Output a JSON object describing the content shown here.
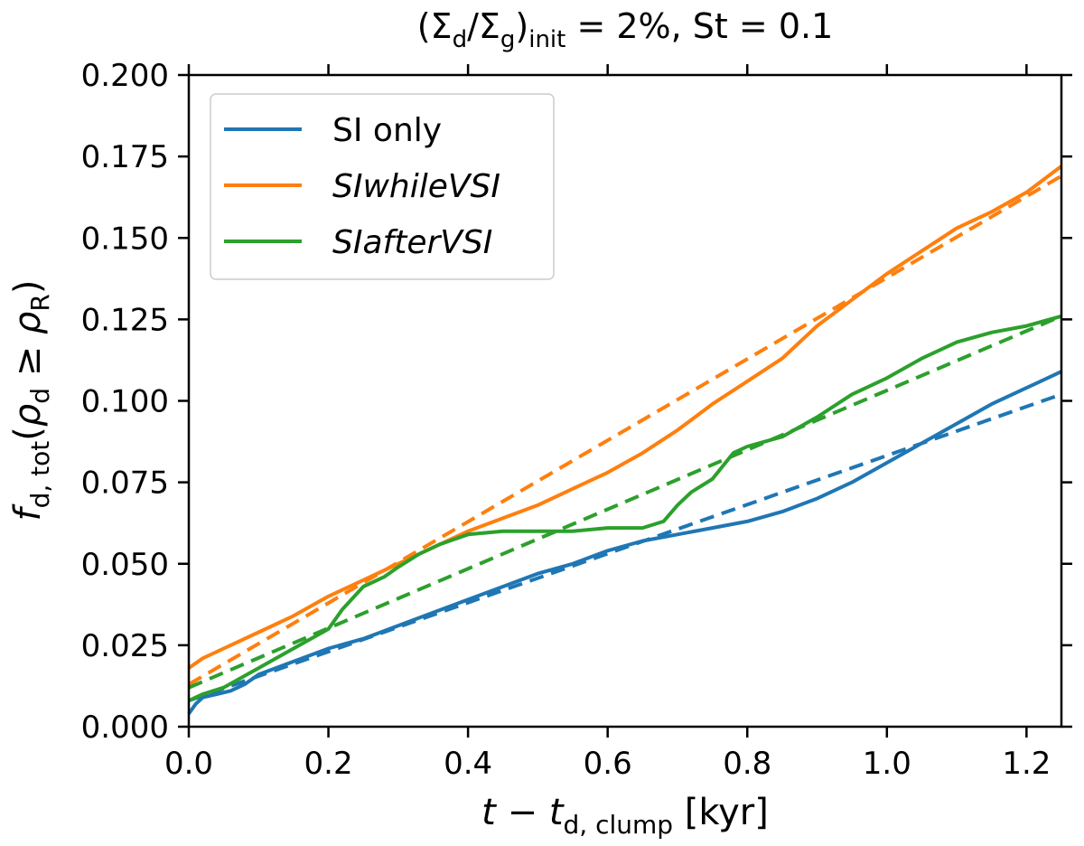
{
  "chart_data": {
    "type": "line",
    "title": {
      "open": "(Σ",
      "d1": "d",
      "slash": "/Σ",
      "g": "g",
      "close": ")",
      "init": "init",
      "rest": " = 2%, St = 0.1"
    },
    "xlabel": {
      "t": "t",
      "minus": " − ",
      "t2": "t",
      "sub": "d, clump",
      "unit": " [kyr]"
    },
    "ylabel": {
      "f": "f",
      "sub": "d, tot",
      "open": "(",
      "rho": "ρ",
      "rho_sub": "d",
      "ge": " ≥ ",
      "rho2": "ρ",
      "rho2_sub": "R",
      "close": ")"
    },
    "xlim": [
      0.0,
      1.25
    ],
    "ylim": [
      0.0,
      0.2
    ],
    "xticks": [
      0.0,
      0.2,
      0.4,
      0.6,
      0.8,
      1.0,
      1.2
    ],
    "xtick_labels": [
      "0.0",
      "0.2",
      "0.4",
      "0.6",
      "0.8",
      "1.0",
      "1.2"
    ],
    "yticks": [
      0.0,
      0.025,
      0.05,
      0.075,
      0.1,
      0.125,
      0.15,
      0.175,
      0.2
    ],
    "ytick_labels": [
      "0.000",
      "0.025",
      "0.050",
      "0.075",
      "0.100",
      "0.125",
      "0.150",
      "0.175",
      "0.200"
    ],
    "legend_position": "top-left",
    "series": [
      {
        "name": "SI only",
        "italic": false,
        "color": "#1f77b4",
        "x": [
          0.0,
          0.01,
          0.02,
          0.04,
          0.06,
          0.08,
          0.1,
          0.15,
          0.2,
          0.25,
          0.3,
          0.35,
          0.4,
          0.45,
          0.5,
          0.55,
          0.6,
          0.65,
          0.7,
          0.75,
          0.8,
          0.85,
          0.9,
          0.95,
          1.0,
          1.05,
          1.1,
          1.15,
          1.2,
          1.25
        ],
        "y": [
          0.004,
          0.007,
          0.009,
          0.01,
          0.011,
          0.013,
          0.016,
          0.02,
          0.024,
          0.027,
          0.031,
          0.035,
          0.039,
          0.043,
          0.047,
          0.05,
          0.054,
          0.057,
          0.059,
          0.061,
          0.063,
          0.066,
          0.07,
          0.075,
          0.081,
          0.087,
          0.093,
          0.099,
          0.104,
          0.109
        ],
        "fit": [
          0.008,
          0.102
        ]
      },
      {
        "name": "SIwhileVSI",
        "italic": true,
        "color": "#ff7f0e",
        "x": [
          0.0,
          0.02,
          0.05,
          0.1,
          0.15,
          0.2,
          0.25,
          0.3,
          0.35,
          0.4,
          0.45,
          0.5,
          0.55,
          0.6,
          0.65,
          0.7,
          0.75,
          0.8,
          0.85,
          0.9,
          0.95,
          1.0,
          1.05,
          1.1,
          1.15,
          1.2,
          1.25
        ],
        "y": [
          0.018,
          0.021,
          0.024,
          0.029,
          0.034,
          0.04,
          0.045,
          0.05,
          0.055,
          0.06,
          0.064,
          0.068,
          0.073,
          0.078,
          0.084,
          0.091,
          0.099,
          0.106,
          0.113,
          0.123,
          0.131,
          0.139,
          0.146,
          0.153,
          0.158,
          0.164,
          0.172
        ],
        "fit": [
          0.013,
          0.169
        ]
      },
      {
        "name": "SIafterVSI",
        "italic": true,
        "color": "#2ca02c",
        "x": [
          0.0,
          0.02,
          0.05,
          0.1,
          0.15,
          0.2,
          0.22,
          0.25,
          0.28,
          0.3,
          0.33,
          0.36,
          0.4,
          0.45,
          0.5,
          0.55,
          0.6,
          0.65,
          0.68,
          0.7,
          0.72,
          0.75,
          0.78,
          0.8,
          0.85,
          0.9,
          0.95,
          1.0,
          1.05,
          1.1,
          1.15,
          1.2,
          1.25
        ],
        "y": [
          0.008,
          0.01,
          0.012,
          0.018,
          0.024,
          0.03,
          0.036,
          0.043,
          0.046,
          0.049,
          0.053,
          0.056,
          0.059,
          0.06,
          0.06,
          0.06,
          0.061,
          0.061,
          0.063,
          0.068,
          0.072,
          0.076,
          0.084,
          0.086,
          0.089,
          0.095,
          0.102,
          0.107,
          0.113,
          0.118,
          0.121,
          0.123,
          0.126
        ],
        "fit": [
          0.012,
          0.126
        ]
      }
    ]
  }
}
